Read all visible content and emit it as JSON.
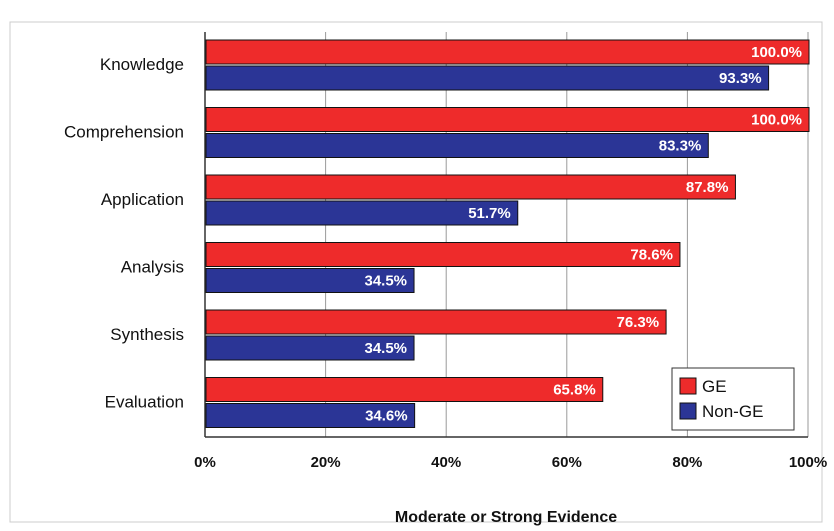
{
  "chart_data": {
    "type": "bar",
    "orientation": "horizontal",
    "categories": [
      "Knowledge",
      "Comprehension",
      "Application",
      "Analysis",
      "Synthesis",
      "Evaluation"
    ],
    "series": [
      {
        "name": "GE",
        "color": "#ee2b2b",
        "values": [
          100.0,
          100.0,
          87.8,
          78.6,
          76.3,
          65.8
        ],
        "labels": [
          "100.0%",
          "100.0%",
          "87.8%",
          "78.6%",
          "76.3%",
          "65.8%"
        ]
      },
      {
        "name": "Non-GE",
        "color": "#2b3596",
        "values": [
          93.3,
          83.3,
          51.7,
          34.5,
          34.5,
          34.6
        ],
        "labels": [
          "93.3%",
          "83.3%",
          "51.7%",
          "34.5%",
          "34.5%",
          "34.6%"
        ]
      }
    ],
    "xlim": [
      0,
      100
    ],
    "x_ticks": [
      0,
      20,
      40,
      60,
      80,
      100
    ],
    "x_tick_labels": [
      "0%",
      "20%",
      "40%",
      "60%",
      "80%",
      "100%"
    ],
    "xlabel": "Moderate or Strong Evidence",
    "grid": "vertical",
    "legend": "bottom-right"
  }
}
